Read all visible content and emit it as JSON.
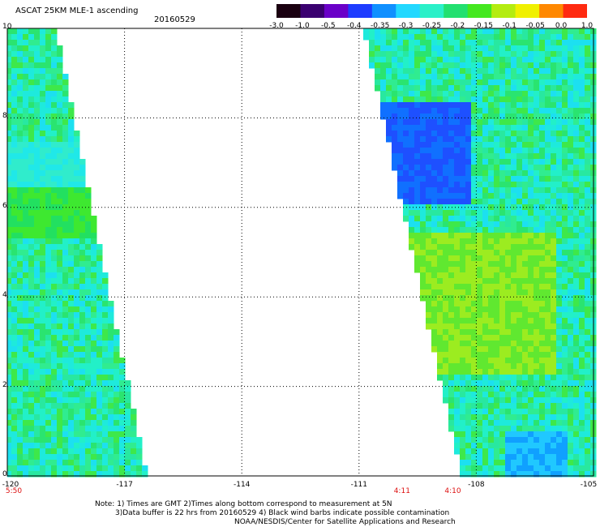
{
  "header": {
    "title": "ASCAT 25KM MLE-1 ascending",
    "date": "20160529"
  },
  "colorbar": {
    "labels": [
      "-3.0",
      "-1.0",
      "-0.5",
      "-0.4",
      "-0.35",
      "-0.3",
      "-0.25",
      "-0.2",
      "-0.15",
      "-0.1",
      "-0.05",
      "0.0",
      "1.0"
    ],
    "colors": [
      "#1a0010",
      "#3a0070",
      "#6a00c8",
      "#1e3cff",
      "#1090ff",
      "#22d8ff",
      "#2af0c8",
      "#22e070",
      "#44e820",
      "#b4ec10",
      "#f0f000",
      "#ff8800",
      "#ff2a10"
    ]
  },
  "map": {
    "lon_range": [
      -120,
      -105
    ],
    "lat_range": [
      0,
      10
    ],
    "lon_ticks": [
      "-120",
      "-117",
      "-114",
      "-111",
      "-108",
      "-105"
    ],
    "lat_ticks": [
      "0",
      "2",
      "4",
      "6",
      "8",
      "10"
    ],
    "swath_west": {
      "top_lon": -118.8,
      "bottom_lon": -116.5
    },
    "swath_east": {
      "top_lon": -110.8,
      "bottom_lon": -108.3
    }
  },
  "times": [
    {
      "label": "5:50",
      "lon": -120
    },
    {
      "label": "4:11",
      "lon": -109.9
    },
    {
      "label": "4:10",
      "lon": -108.6
    }
  ],
  "notes": {
    "line1": "Note: 1) Times are GMT 2)Times along bottom correspond to measurement at 5N",
    "line2": "3)Data buffer is 22 hrs from 20160529 4) Black wind barbs indicate possible contamination",
    "line3": "NOAA/NESDIS/Center for Satellite Applications and Research"
  }
}
